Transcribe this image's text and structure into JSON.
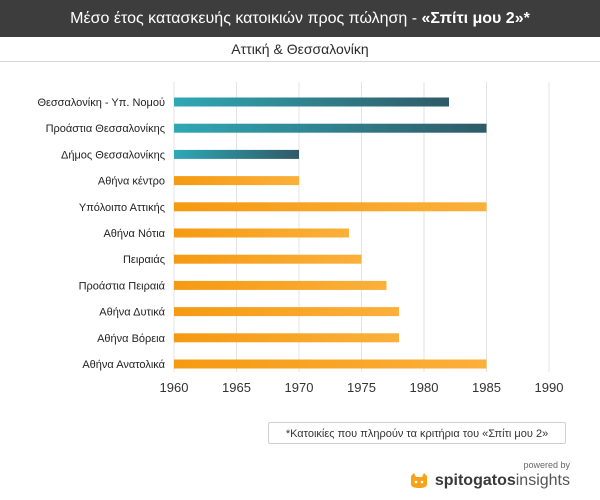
{
  "header": {
    "title_main": "Μέσο έτος κατασκευής κατοικιών προς πώληση - ",
    "title_quote": "«Σπίτι μου 2»*",
    "subtitle": "Αττική & Θεσσαλονίκη"
  },
  "colors": {
    "header_bg": "#3d3d3d",
    "thessaloniki_gradient_start": "#2fa8b5",
    "thessaloniki_gradient_end": "#2f5a66",
    "attica_gradient_start": "#f59a12",
    "attica_gradient_end": "#fbb03b",
    "brand_accent": "#f7a21b"
  },
  "chart_data": {
    "type": "bar",
    "orientation": "horizontal",
    "categories": [
      "Θεσσαλονίκη - Υπ. Νομού",
      "Προάστια Θεσσαλονίκης",
      "Δήμος Θεσσαλονίκης",
      "Αθήνα κέντρο",
      "Υπόλοιπο Αττικής",
      "Αθήνα Νότια",
      "Πειραιάς",
      "Προάστια Πειραιά",
      "Αθήνα Δυτικά",
      "Αθήνα Βόρεια",
      "Αθήνα Ανατολικά"
    ],
    "values": [
      1982,
      1985,
      1970,
      1970,
      1985,
      1974,
      1975,
      1977,
      1978,
      1978,
      1985
    ],
    "groups": [
      "thessaloniki",
      "thessaloniki",
      "thessaloniki",
      "attica",
      "attica",
      "attica",
      "attica",
      "attica",
      "attica",
      "attica",
      "attica"
    ],
    "xlim": [
      1960,
      1990
    ],
    "xticks": [
      "1960",
      "1965",
      "1970",
      "1975",
      "1980",
      "1985",
      "1990"
    ],
    "grid": "vertical",
    "legend": "none"
  },
  "footnote": "*Κατοικίες που πληρούν τα κριτήρια του «Σπίτι μου 2»",
  "brand": {
    "powered_by": "powered by",
    "name_main": "spitogatos",
    "name_sub": "insights",
    "icon": "cat-logo-icon"
  }
}
